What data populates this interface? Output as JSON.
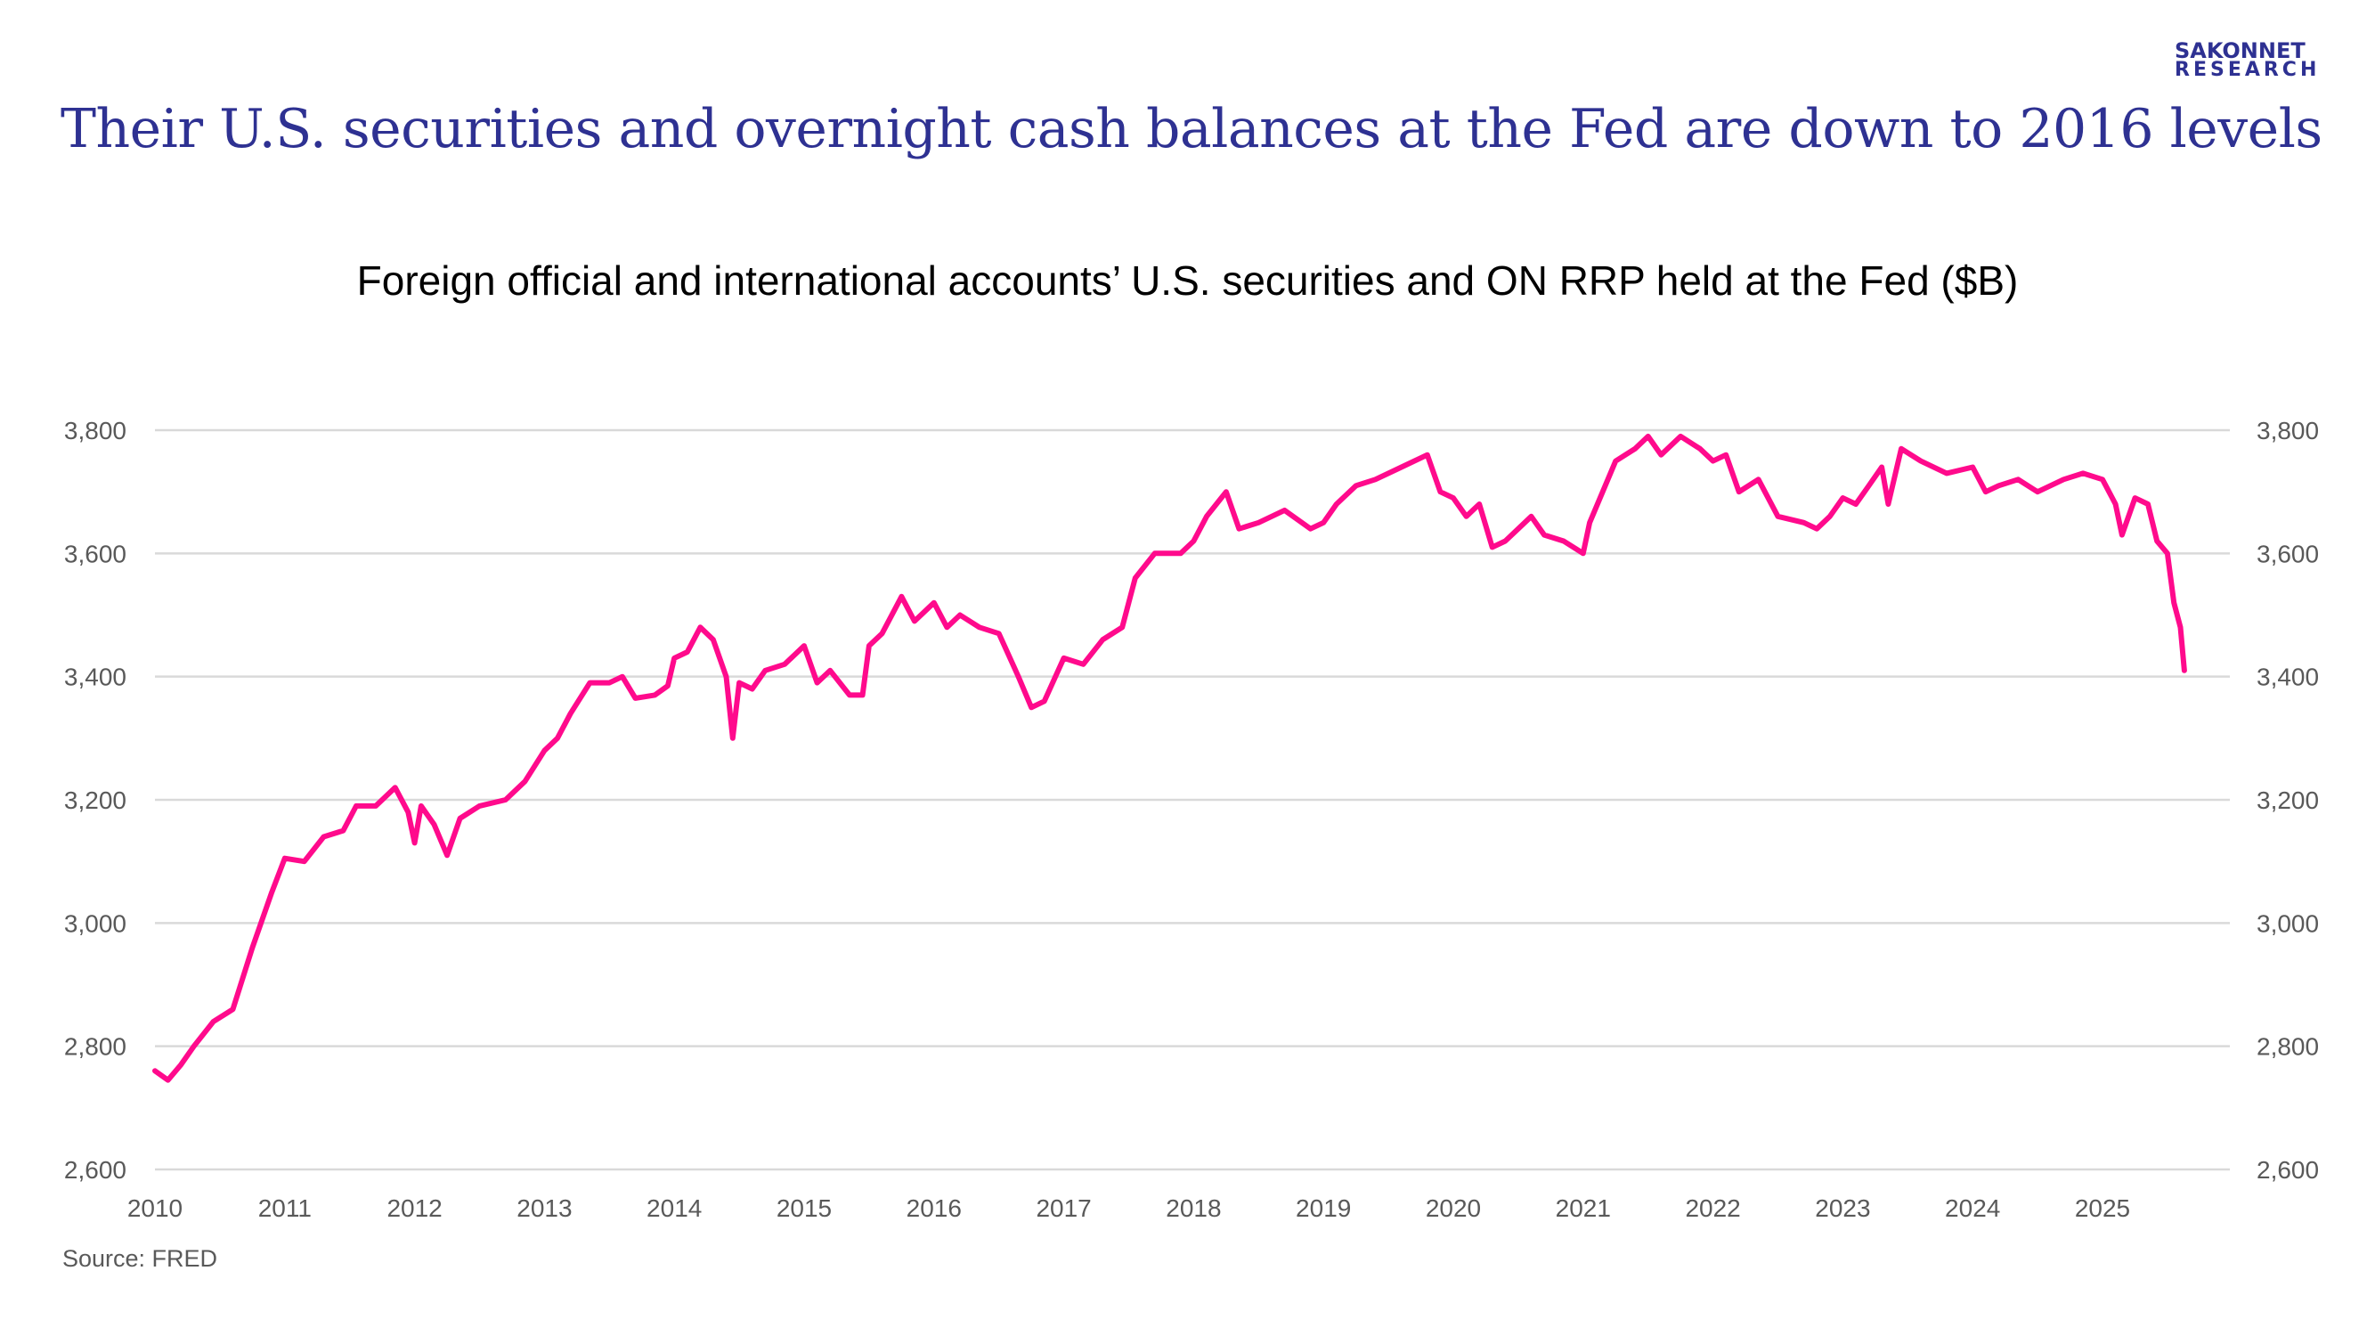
{
  "header": {
    "title": "Their U.S. securities and overnight cash balances at the Fed are down to 2016 levels",
    "logo_line1": "SAKONNET",
    "logo_line2": "RESEARCH"
  },
  "colors": {
    "title": "#2e3192",
    "line": "#ff0a8c",
    "grid": "#d9d9d9",
    "tick": "#595959"
  },
  "source": "Source: FRED",
  "chart_data": {
    "type": "line",
    "title": "Foreign official and international accounts’ U.S. securities and ON RRP held at the Fed ($B)",
    "xlabel": "",
    "ylabel": "",
    "xlim": [
      2010,
      2026
    ],
    "ylim": [
      2600,
      3800
    ],
    "grid": true,
    "legend": "none",
    "x_ticks": [
      "2010",
      "2011",
      "2012",
      "2013",
      "2014",
      "2015",
      "2016",
      "2017",
      "2018",
      "2019",
      "2020",
      "2021",
      "2022",
      "2023",
      "2024",
      "2025"
    ],
    "y_ticks": [
      "2,600",
      "2,800",
      "3,000",
      "3,200",
      "3,400",
      "3,600",
      "3,800"
    ],
    "y_tick_values": [
      2600,
      2800,
      3000,
      3200,
      3400,
      3600,
      3800
    ],
    "series": [
      {
        "name": "Foreign official and international accounts",
        "x": [
          2010.0,
          2010.1,
          2010.2,
          2010.3,
          2010.45,
          2010.6,
          2010.75,
          2010.9,
          2011.0,
          2011.15,
          2011.3,
          2011.45,
          2011.55,
          2011.7,
          2011.85,
          2011.95,
          2012.0,
          2012.05,
          2012.15,
          2012.25,
          2012.35,
          2012.5,
          2012.7,
          2012.85,
          2013.0,
          2013.1,
          2013.2,
          2013.35,
          2013.5,
          2013.6,
          2013.7,
          2013.85,
          2013.95,
          2014.0,
          2014.1,
          2014.2,
          2014.3,
          2014.4,
          2014.45,
          2014.5,
          2014.6,
          2014.7,
          2014.85,
          2015.0,
          2015.1,
          2015.2,
          2015.35,
          2015.45,
          2015.5,
          2015.6,
          2015.75,
          2015.85,
          2016.0,
          2016.1,
          2016.2,
          2016.35,
          2016.5,
          2016.65,
          2016.75,
          2016.85,
          2017.0,
          2017.15,
          2017.3,
          2017.45,
          2017.55,
          2017.7,
          2017.9,
          2018.0,
          2018.1,
          2018.25,
          2018.35,
          2018.5,
          2018.7,
          2018.9,
          2019.0,
          2019.1,
          2019.25,
          2019.4,
          2019.6,
          2019.8,
          2019.9,
          2020.0,
          2020.1,
          2020.2,
          2020.3,
          2020.4,
          2020.5,
          2020.6,
          2020.7,
          2020.85,
          2021.0,
          2021.05,
          2021.15,
          2021.25,
          2021.4,
          2021.5,
          2021.6,
          2021.75,
          2021.9,
          2022.0,
          2022.1,
          2022.2,
          2022.35,
          2022.5,
          2022.7,
          2022.8,
          2022.9,
          2023.0,
          2023.1,
          2023.2,
          2023.3,
          2023.35,
          2023.45,
          2023.6,
          2023.8,
          2024.0,
          2024.1,
          2024.2,
          2024.35,
          2024.5,
          2024.7,
          2024.85,
          2025.0,
          2025.1,
          2025.15,
          2025.25,
          2025.35,
          2025.42,
          2025.5,
          2025.55,
          2025.6,
          2025.63
        ],
        "values": [
          2760,
          2745,
          2770,
          2800,
          2840,
          2860,
          2960,
          3050,
          3105,
          3100,
          3140,
          3150,
          3190,
          3190,
          3220,
          3180,
          3130,
          3190,
          3160,
          3110,
          3170,
          3190,
          3200,
          3230,
          3280,
          3300,
          3340,
          3390,
          3390,
          3400,
          3365,
          3370,
          3385,
          3430,
          3440,
          3480,
          3460,
          3400,
          3300,
          3390,
          3380,
          3410,
          3420,
          3450,
          3390,
          3410,
          3370,
          3370,
          3450,
          3470,
          3530,
          3490,
          3520,
          3480,
          3500,
          3480,
          3470,
          3400,
          3350,
          3360,
          3430,
          3420,
          3460,
          3480,
          3560,
          3600,
          3600,
          3620,
          3660,
          3700,
          3640,
          3650,
          3670,
          3640,
          3650,
          3680,
          3710,
          3720,
          3740,
          3760,
          3700,
          3690,
          3660,
          3680,
          3610,
          3620,
          3640,
          3660,
          3630,
          3620,
          3600,
          3650,
          3700,
          3750,
          3770,
          3790,
          3760,
          3790,
          3770,
          3750,
          3760,
          3700,
          3720,
          3660,
          3650,
          3640,
          3660,
          3690,
          3680,
          3710,
          3740,
          3680,
          3770,
          3750,
          3730,
          3740,
          3700,
          3710,
          3720,
          3700,
          3720,
          3730,
          3720,
          3680,
          3630,
          3690,
          3680,
          3620,
          3600,
          3520,
          3480,
          3410
        ]
      }
    ]
  }
}
